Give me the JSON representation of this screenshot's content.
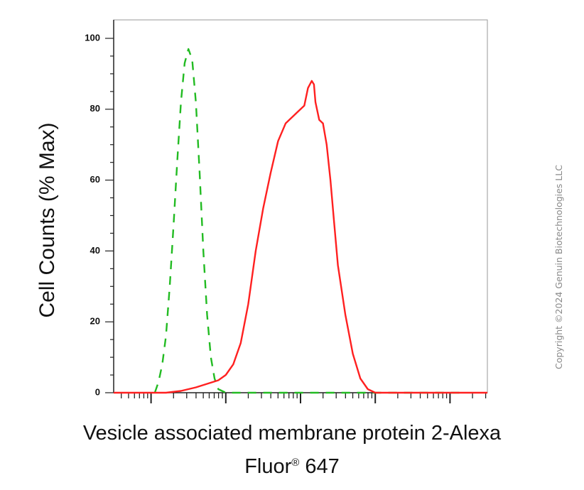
{
  "chart_data": {
    "type": "line",
    "title": "",
    "ylabel": "Cell Counts (% Max)",
    "xlabel_line1": "Vesicle associated membrane protein 2-Alexa",
    "xlabel_line2_main": "Fluor",
    "xlabel_line2_sup": "®",
    "xlabel_line2_end": " 647",
    "xscale": "log",
    "xlim": [
      -1.5,
      3.5
    ],
    "ylim": [
      0,
      105
    ],
    "yticks": [
      0,
      20,
      40,
      60,
      80,
      100
    ],
    "ytick_labels": [
      "0",
      "20",
      "40",
      "60",
      "80",
      "100"
    ],
    "series": [
      {
        "style": "dashed",
        "color": "#22bb22",
        "x": [
          -0.95,
          -0.9,
          -0.85,
          -0.8,
          -0.75,
          -0.7,
          -0.65,
          -0.6,
          -0.55,
          -0.5,
          -0.45,
          -0.4,
          -0.35,
          -0.3,
          -0.25,
          -0.2,
          -0.15,
          -0.1,
          0.0,
          0.2,
          0.5,
          1.0,
          1.5,
          2.0,
          2.5,
          3.2
        ],
        "values": [
          0,
          3,
          8,
          16,
          30,
          47,
          65,
          82,
          93,
          97,
          94,
          82,
          62,
          40,
          22,
          10,
          4,
          1,
          0,
          0,
          0,
          0,
          0,
          0,
          0,
          0
        ]
      },
      {
        "style": "solid",
        "color": "#ff2020",
        "x": [
          -1.5,
          -1.0,
          -0.8,
          -0.6,
          -0.4,
          -0.25,
          -0.1,
          0.0,
          0.1,
          0.2,
          0.3,
          0.4,
          0.5,
          0.6,
          0.7,
          0.8,
          0.85,
          0.9,
          0.95,
          1.0,
          1.05,
          1.1,
          1.15,
          1.18,
          1.2,
          1.25,
          1.3,
          1.35,
          1.4,
          1.45,
          1.5,
          1.6,
          1.7,
          1.8,
          1.9,
          2.0,
          2.1,
          2.2,
          2.5,
          3.0,
          3.5
        ],
        "values": [
          0,
          0,
          0,
          0.5,
          1.5,
          2.5,
          3.5,
          5,
          8,
          14,
          25,
          40,
          52,
          62,
          71,
          76,
          77,
          78,
          79,
          80,
          81,
          86,
          88,
          87,
          82,
          77,
          76,
          70,
          60,
          48,
          36,
          22,
          11,
          4,
          1,
          0,
          0,
          0,
          0,
          0,
          0
        ]
      }
    ]
  },
  "copyright": "Copyright ©2024 Genuin Biotechnologies LLC"
}
